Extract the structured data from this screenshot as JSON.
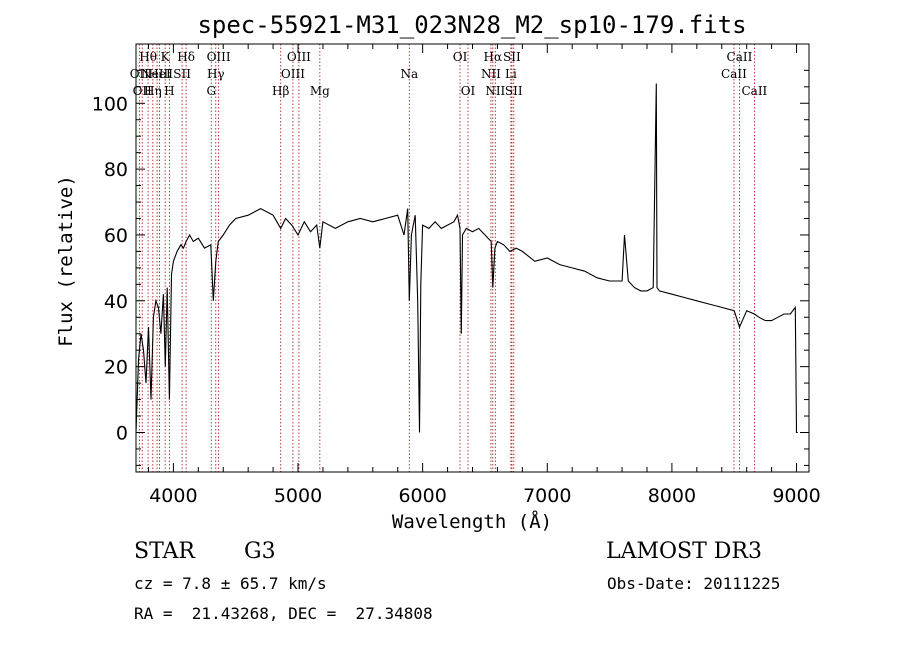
{
  "chart_data": {
    "type": "line",
    "title": "spec-55921-M31_023N28_M2_sp10-179.fits",
    "xlabel": "Wavelength (Å)",
    "ylabel": "Flux (relative)",
    "xlim": [
      3700,
      9100
    ],
    "ylim": [
      -12,
      118
    ],
    "x_ticks": [
      4000,
      5000,
      6000,
      7000,
      8000,
      9000
    ],
    "y_ticks": [
      0,
      20,
      40,
      60,
      80,
      100
    ],
    "spectrum": {
      "x": [
        3700,
        3720,
        3740,
        3760,
        3780,
        3800,
        3820,
        3840,
        3860,
        3880,
        3900,
        3920,
        3935,
        3950,
        3968,
        3985,
        4000,
        4030,
        4060,
        4080,
        4102,
        4130,
        4160,
        4200,
        4250,
        4300,
        4320,
        4340,
        4360,
        4400,
        4450,
        4500,
        4600,
        4700,
        4800,
        4861,
        4900,
        4950,
        5000,
        5050,
        5100,
        5150,
        5175,
        5200,
        5300,
        5400,
        5500,
        5600,
        5700,
        5800,
        5850,
        5880,
        5893,
        5910,
        5940,
        5960,
        5975,
        5985,
        6000,
        6050,
        6100,
        6150,
        6200,
        6250,
        6280,
        6300,
        6310,
        6320,
        6350,
        6400,
        6450,
        6500,
        6550,
        6563,
        6580,
        6600,
        6650,
        6700,
        6750,
        6800,
        6900,
        7000,
        7100,
        7200,
        7300,
        7400,
        7500,
        7600,
        7620,
        7650,
        7700,
        7750,
        7800,
        7850,
        7875,
        7880,
        7900,
        8000,
        8100,
        8200,
        8300,
        8400,
        8500,
        8542,
        8600,
        8662,
        8700,
        8750,
        8800,
        8850,
        8900,
        8950,
        8990,
        9000,
        9010
      ],
      "y": [
        0,
        22,
        30,
        25,
        15,
        32,
        10,
        35,
        40,
        38,
        30,
        42,
        20,
        44,
        10,
        48,
        52,
        55,
        57,
        56,
        58,
        60,
        58,
        59,
        56,
        57,
        40,
        52,
        58,
        60,
        63,
        65,
        66,
        68,
        66,
        62,
        65,
        63,
        60,
        64,
        61,
        63,
        56,
        64,
        62,
        64,
        65,
        64,
        65,
        66,
        60,
        68,
        40,
        60,
        66,
        40,
        0,
        45,
        63,
        62,
        64,
        62,
        63,
        64,
        66,
        62,
        30,
        60,
        62,
        61,
        62,
        60,
        58,
        44,
        56,
        58,
        57,
        55,
        56,
        55,
        52,
        53,
        51,
        50,
        49,
        47,
        46,
        46,
        60,
        46,
        44,
        43,
        43,
        44,
        106,
        44,
        43,
        42,
        41,
        40,
        39,
        38,
        37,
        32,
        37,
        36,
        35,
        34,
        34,
        35,
        36,
        36,
        38,
        0,
        0
      ]
    },
    "emission_lines": [
      {
        "wavelength": 3727,
        "row": 2,
        "label": "OII"
      },
      {
        "wavelength": 3750,
        "row": 3,
        "label": "OII"
      },
      {
        "wavelength": 3797,
        "row": 1,
        "label": "Hθ"
      },
      {
        "wavelength": 3835,
        "row": 3,
        "label": "Hη"
      },
      {
        "wavelength": 3869,
        "row": 2,
        "label": "NeIII"
      },
      {
        "wavelength": 3889,
        "row": 2,
        "label": "HeI"
      },
      {
        "wavelength": 3934,
        "row": 1,
        "label": "K"
      },
      {
        "wavelength": 3968,
        "row": 3,
        "label": "H"
      },
      {
        "wavelength": 4070,
        "row": 2,
        "label": "SII"
      },
      {
        "wavelength": 4102,
        "row": 1,
        "label": "Hδ"
      },
      {
        "wavelength": 4304,
        "row": 3,
        "label": "G"
      },
      {
        "wavelength": 4340,
        "row": 2,
        "label": "Hγ"
      },
      {
        "wavelength": 4363,
        "row": 1,
        "label": "OIII"
      },
      {
        "wavelength": 4861,
        "row": 3,
        "label": "Hβ"
      },
      {
        "wavelength": 4959,
        "row": 2,
        "label": "OIII"
      },
      {
        "wavelength": 5007,
        "row": 1,
        "label": "OIII"
      },
      {
        "wavelength": 5175,
        "row": 3,
        "label": "Mg"
      },
      {
        "wavelength": 5893,
        "row": 2,
        "label": "Na"
      },
      {
        "wavelength": 6300,
        "row": 1,
        "label": "OI"
      },
      {
        "wavelength": 6364,
        "row": 3,
        "label": "OI"
      },
      {
        "wavelength": 6548,
        "row": 2,
        "label": "NII"
      },
      {
        "wavelength": 6563,
        "row": 1,
        "label": "Hα"
      },
      {
        "wavelength": 6583,
        "row": 3,
        "label": "NII"
      },
      {
        "wavelength": 6708,
        "row": 2,
        "label": "Li"
      },
      {
        "wavelength": 6716,
        "row": 1,
        "label": "SII"
      },
      {
        "wavelength": 6731,
        "row": 3,
        "label": "SII"
      },
      {
        "wavelength": 8498,
        "row": 2,
        "label": "CaII"
      },
      {
        "wavelength": 8542,
        "row": 1,
        "label": "CaII"
      },
      {
        "wavelength": 8662,
        "row": 3,
        "label": "CaII"
      }
    ]
  },
  "info": {
    "object_type": "STAR",
    "subclass": "G3",
    "survey": "LAMOST DR3",
    "redshift": "cz = 7.8 ± 65.7 km/s",
    "obs_date": "Obs-Date: 20111225",
    "coords": "RA =  21.43268, DEC =  27.34808"
  },
  "colors": {
    "spectrum": "#000000",
    "line_marker": "#b22222",
    "axis": "#000000"
  }
}
